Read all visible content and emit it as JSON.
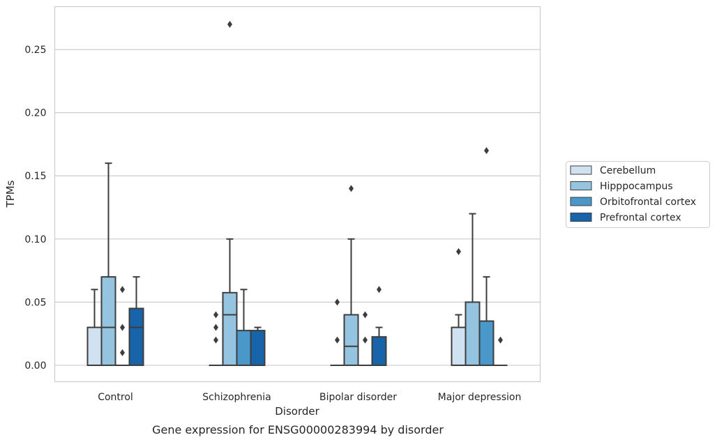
{
  "chart_data": {
    "type": "box",
    "caption": "Gene expression for ENSG00000283994 by disorder",
    "xlabel": "Disorder",
    "ylabel": "TPMs",
    "ylim": [
      -0.013,
      0.284
    ],
    "yticks": [
      0.0,
      0.05,
      0.1,
      0.15,
      0.2,
      0.25
    ],
    "ytick_labels": [
      "0.00",
      "0.05",
      "0.10",
      "0.15",
      "0.20",
      "0.25"
    ],
    "grid": "horizontal",
    "legend_position": "right",
    "categories": [
      "Control",
      "Schizophrenia",
      "Bipolar disorder",
      "Major depression"
    ],
    "series": [
      {
        "name": "Cerebellum",
        "color": "#d0e1f2",
        "boxes": [
          {
            "q1": 0.0,
            "median": 0.0,
            "q3": 0.03,
            "whisker_low": 0.0,
            "whisker_high": 0.06,
            "outliers": []
          },
          {
            "q1": 0.0,
            "median": 0.0,
            "q3": 0.0,
            "whisker_low": 0.0,
            "whisker_high": 0.0,
            "outliers": [
              0.02,
              0.03,
              0.04
            ]
          },
          {
            "q1": 0.0,
            "median": 0.0,
            "q3": 0.0,
            "whisker_low": 0.0,
            "whisker_high": 0.0,
            "outliers": [
              0.02,
              0.05
            ]
          },
          {
            "q1": 0.0,
            "median": 0.0,
            "q3": 0.03,
            "whisker_low": 0.0,
            "whisker_high": 0.04,
            "outliers": [
              0.09
            ]
          }
        ]
      },
      {
        "name": "Hipppocampus",
        "color": "#94c4df",
        "boxes": [
          {
            "q1": 0.0,
            "median": 0.03,
            "q3": 0.07,
            "whisker_low": 0.0,
            "whisker_high": 0.16,
            "outliers": []
          },
          {
            "q1": 0.0,
            "median": 0.04,
            "q3": 0.0575,
            "whisker_low": 0.0,
            "whisker_high": 0.1,
            "outliers": [
              0.27
            ]
          },
          {
            "q1": 0.0,
            "median": 0.015,
            "q3": 0.04,
            "whisker_low": 0.0,
            "whisker_high": 0.1,
            "outliers": [
              0.14
            ]
          },
          {
            "q1": 0.0,
            "median": 0.0,
            "q3": 0.05,
            "whisker_low": 0.0,
            "whisker_high": 0.12,
            "outliers": []
          }
        ]
      },
      {
        "name": "Orbitofrontal cortex",
        "color": "#4a98c9",
        "boxes": [
          {
            "q1": 0.0,
            "median": 0.0,
            "q3": 0.0,
            "whisker_low": 0.0,
            "whisker_high": 0.0,
            "outliers": [
              0.01,
              0.03,
              0.06
            ]
          },
          {
            "q1": 0.0,
            "median": 0.0,
            "q3": 0.0275,
            "whisker_low": 0.0,
            "whisker_high": 0.06,
            "outliers": []
          },
          {
            "q1": 0.0,
            "median": 0.0,
            "q3": 0.0,
            "whisker_low": 0.0,
            "whisker_high": 0.0,
            "outliers": [
              0.02,
              0.04
            ]
          },
          {
            "q1": 0.0,
            "median": 0.0,
            "q3": 0.035,
            "whisker_low": 0.0,
            "whisker_high": 0.07,
            "outliers": [
              0.17
            ]
          }
        ]
      },
      {
        "name": "Prefrontal cortex",
        "color": "#1764ab",
        "boxes": [
          {
            "q1": 0.0,
            "median": 0.03,
            "q3": 0.045,
            "whisker_low": 0.0,
            "whisker_high": 0.07,
            "outliers": []
          },
          {
            "q1": 0.0,
            "median": 0.0,
            "q3": 0.0275,
            "whisker_low": 0.0,
            "whisker_high": 0.03,
            "outliers": []
          },
          {
            "q1": 0.0,
            "median": 0.0,
            "q3": 0.0225,
            "whisker_low": 0.0,
            "whisker_high": 0.03,
            "outliers": [
              0.06
            ]
          },
          {
            "q1": 0.0,
            "median": 0.0,
            "q3": 0.0,
            "whisker_low": 0.0,
            "whisker_high": 0.0,
            "outliers": [
              0.02
            ]
          }
        ]
      }
    ]
  }
}
